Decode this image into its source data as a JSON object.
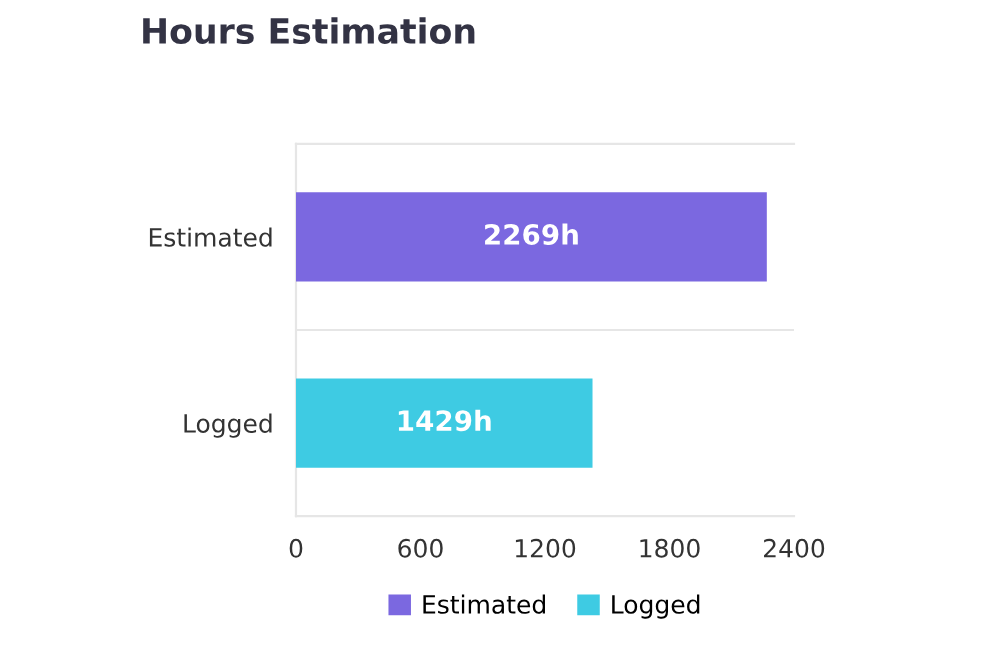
{
  "chart_data": {
    "type": "bar",
    "orientation": "horizontal",
    "title": "Hours Estimation",
    "categories": [
      "Estimated",
      "Logged"
    ],
    "series": [
      {
        "name": "Estimated",
        "color": "#7b68e0",
        "values": [
          2269,
          null
        ],
        "value_labels": [
          "2269h",
          null
        ]
      },
      {
        "name": "Logged",
        "color": "#3ecbe3",
        "values": [
          null,
          1429
        ],
        "value_labels": [
          null,
          "1429h"
        ]
      }
    ],
    "xlim": [
      0,
      2400
    ],
    "xticks": [
      0,
      600,
      1200,
      1800,
      2400
    ],
    "grid": "y",
    "legend": "bottom"
  }
}
